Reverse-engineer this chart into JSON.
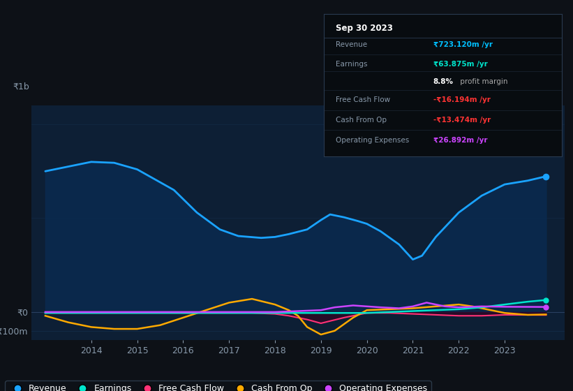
{
  "bg_color": "#0d1117",
  "plot_bg_color": "#0d1f35",
  "ylim": [
    -150,
    1100
  ],
  "xlim": [
    2012.7,
    2024.3
  ],
  "revenue": {
    "x": [
      2013.0,
      2013.5,
      2014.0,
      2014.5,
      2015.0,
      2015.8,
      2016.3,
      2016.8,
      2017.2,
      2017.7,
      2018.0,
      2018.3,
      2018.7,
      2019.0,
      2019.2,
      2019.5,
      2019.8,
      2020.0,
      2020.3,
      2020.7,
      2021.0,
      2021.2,
      2021.5,
      2022.0,
      2022.5,
      2023.0,
      2023.5,
      2023.9
    ],
    "y": [
      750,
      775,
      800,
      795,
      760,
      650,
      530,
      440,
      405,
      395,
      400,
      415,
      440,
      490,
      520,
      505,
      485,
      470,
      430,
      360,
      280,
      300,
      400,
      530,
      620,
      680,
      700,
      723
    ],
    "color": "#1aa3ff",
    "lw": 2.0,
    "fill_color": "#0a2a50",
    "fill_alpha": 0.85
  },
  "earnings": {
    "x": [
      2013.0,
      2014.0,
      2015.0,
      2016.0,
      2017.0,
      2018.0,
      2018.5,
      2019.0,
      2019.5,
      2020.0,
      2020.5,
      2021.0,
      2021.5,
      2022.0,
      2022.5,
      2023.0,
      2023.5,
      2023.9
    ],
    "y": [
      -5,
      -5,
      -5,
      -5,
      -5,
      -5,
      -5,
      -5,
      -5,
      -5,
      0,
      5,
      10,
      15,
      25,
      40,
      55,
      64
    ],
    "color": "#00e5cc",
    "lw": 1.8
  },
  "free_cash_flow": {
    "x": [
      2013.0,
      2014.0,
      2015.0,
      2016.0,
      2017.0,
      2017.5,
      2018.0,
      2018.3,
      2018.7,
      2019.0,
      2019.5,
      2020.0,
      2020.5,
      2021.0,
      2021.5,
      2022.0,
      2022.5,
      2023.0,
      2023.9
    ],
    "y": [
      -5,
      -5,
      -5,
      -5,
      -5,
      -5,
      -10,
      -20,
      -40,
      -60,
      -30,
      -5,
      -5,
      -10,
      -15,
      -20,
      -20,
      -15,
      -16
    ],
    "color": "#ff3377",
    "lw": 1.5,
    "fill_color": "#3a0020",
    "fill_alpha": 0.6
  },
  "cash_from_op": {
    "x": [
      2013.0,
      2013.5,
      2014.0,
      2014.5,
      2015.0,
      2015.5,
      2016.0,
      2016.5,
      2017.0,
      2017.5,
      2018.0,
      2018.3,
      2018.5,
      2018.7,
      2019.0,
      2019.3,
      2019.7,
      2020.0,
      2020.5,
      2021.0,
      2021.5,
      2022.0,
      2022.3,
      2022.7,
      2023.0,
      2023.5,
      2023.9
    ],
    "y": [
      -20,
      -55,
      -80,
      -90,
      -90,
      -70,
      -30,
      10,
      50,
      70,
      40,
      10,
      -20,
      -80,
      -120,
      -100,
      -30,
      10,
      15,
      20,
      30,
      40,
      30,
      10,
      -5,
      -15,
      -13
    ],
    "color": "#ffaa00",
    "lw": 1.8
  },
  "operating_expenses": {
    "x": [
      2013.0,
      2014.0,
      2015.0,
      2016.0,
      2017.0,
      2018.0,
      2018.5,
      2019.0,
      2019.3,
      2019.7,
      2020.0,
      2020.3,
      2020.7,
      2021.0,
      2021.3,
      2021.7,
      2022.0,
      2022.5,
      2023.0,
      2023.9
    ],
    "y": [
      0,
      0,
      0,
      0,
      0,
      0,
      5,
      10,
      25,
      35,
      30,
      25,
      20,
      30,
      50,
      30,
      25,
      30,
      28,
      27
    ],
    "color": "#cc44ff",
    "lw": 1.8
  },
  "legend": [
    {
      "label": "Revenue",
      "color": "#1aa3ff"
    },
    {
      "label": "Earnings",
      "color": "#00e5cc"
    },
    {
      "label": "Free Cash Flow",
      "color": "#ff3377"
    },
    {
      "label": "Cash From Op",
      "color": "#ffaa00"
    },
    {
      "label": "Operating Expenses",
      "color": "#cc44ff"
    }
  ],
  "xtick_years": [
    2014,
    2015,
    2016,
    2017,
    2018,
    2019,
    2020,
    2021,
    2022,
    2023
  ],
  "ytick_label_1b": "₹1b",
  "ytick_label_0": "₹0",
  "ytick_label_n100": "-₹100m",
  "grid_color": "#1a3a5c",
  "text_color": "#8899aa",
  "zero_line_color": "#2a4060",
  "infobox": {
    "date": "Sep 30 2023",
    "bg_color": "#080c10",
    "border_color": "#2a3a50",
    "rows": [
      {
        "label": "Revenue",
        "value": "₹723.120m /yr",
        "value_color": "#00bfff"
      },
      {
        "label": "Earnings",
        "value": "₹63.875m /yr",
        "value_color": "#00e5cc"
      },
      {
        "label": "",
        "value": "8.8% profit margin",
        "value_color": "#aaaaaa",
        "bold": "8.8%"
      },
      {
        "label": "Free Cash Flow",
        "value": "-₹16.194m /yr",
        "value_color": "#ff3333"
      },
      {
        "label": "Cash From Op",
        "value": "-₹13.474m /yr",
        "value_color": "#ff3333"
      },
      {
        "label": "Operating Expenses",
        "value": "₹26.892m /yr",
        "value_color": "#cc44ff"
      }
    ]
  }
}
